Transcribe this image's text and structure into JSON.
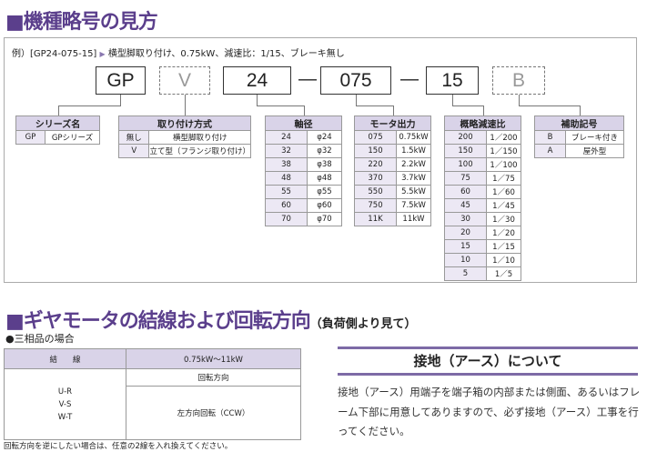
{
  "section1": {
    "title": "■機種略号の見方",
    "example_prefix": "例）[GP24-075-15]",
    "example_arrow": "▶",
    "example_desc": "横型脚取り付け、0.75kW、減速比：1/15、ブレーキ無し",
    "codes": [
      "GP",
      "V",
      "24",
      "075",
      "15",
      "B"
    ],
    "dash": "—",
    "tables": [
      {
        "header": "シリーズ名",
        "rows": [
          [
            "GP",
            "GPシリーズ"
          ]
        ]
      },
      {
        "header": "取り付け方式",
        "rows": [
          [
            "無し",
            "横型脚取り付け"
          ],
          [
            "V",
            "立て型（フランジ取り付け）"
          ]
        ]
      },
      {
        "header": "軸径",
        "rows": [
          [
            "24",
            "φ24"
          ],
          [
            "32",
            "φ32"
          ],
          [
            "38",
            "φ38"
          ],
          [
            "48",
            "φ48"
          ],
          [
            "55",
            "φ55"
          ],
          [
            "60",
            "φ60"
          ],
          [
            "70",
            "φ70"
          ]
        ]
      },
      {
        "header": "モータ出力",
        "rows": [
          [
            "075",
            "0.75kW"
          ],
          [
            "150",
            "1.5kW"
          ],
          [
            "220",
            "2.2kW"
          ],
          [
            "370",
            "3.7kW"
          ],
          [
            "550",
            "5.5kW"
          ],
          [
            "750",
            "7.5kW"
          ],
          [
            "11K",
            "11kW"
          ]
        ]
      },
      {
        "header": "概略減速比",
        "rows": [
          [
            "200",
            "1／200"
          ],
          [
            "150",
            "1／150"
          ],
          [
            "100",
            "1／100"
          ],
          [
            "75",
            "1／75"
          ],
          [
            "60",
            "1／60"
          ],
          [
            "45",
            "1／45"
          ],
          [
            "30",
            "1／30"
          ],
          [
            "20",
            "1／20"
          ],
          [
            "15",
            "1／15"
          ],
          [
            "10",
            "1／10"
          ],
          [
            "5",
            "1／5"
          ]
        ]
      },
      {
        "header": "補助記号",
        "rows": [
          [
            "B",
            "ブレーキ付き"
          ],
          [
            "A",
            "屋外型"
          ]
        ]
      }
    ]
  },
  "section2": {
    "title": "■ギヤモータの結線および回転方向",
    "subtitle": "（負荷側より見て）",
    "subhead": "●三相品の場合",
    "table": {
      "col1": "結　　線",
      "col2": "0.75kW〜11kW",
      "rot_label": "回転方向",
      "wiring": [
        "U-R",
        "V-S",
        "W-T"
      ],
      "direction": "左方向回転（CCW）"
    },
    "note": "回転方向を逆にしたい場合は、任意の2線を入れ換えてください。"
  },
  "earth": {
    "title": "接地（アース）について",
    "body": "接地（アース）用端子を端子箱の内部または側面、あるいはフレーム下部に用意してありますので、必ず接地（アース）工事を行ってください。"
  }
}
